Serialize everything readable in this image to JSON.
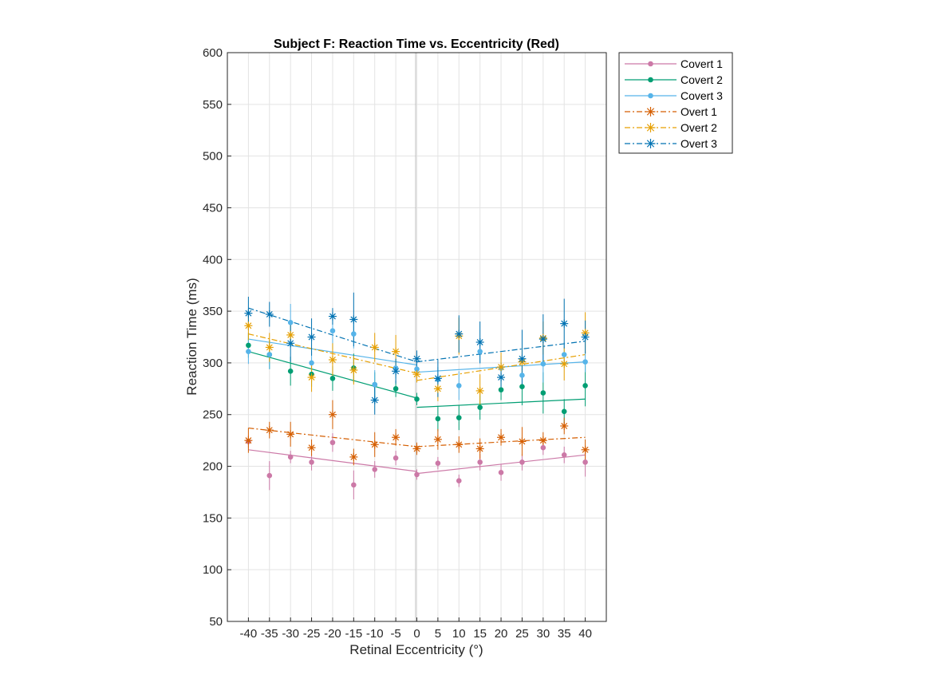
{
  "chart_data": {
    "type": "line",
    "title": "Subject F: Reaction Time vs. Eccentricity (Red)",
    "xlabel": "Retinal Eccentricity (°)",
    "ylabel": "Reaction Time (ms)",
    "xlim": [
      -45,
      45
    ],
    "ylim": [
      50,
      600
    ],
    "xticks": [
      -40,
      -35,
      -30,
      -25,
      -20,
      -15,
      -10,
      -5,
      0,
      5,
      10,
      15,
      20,
      25,
      30,
      35,
      40
    ],
    "yticks": [
      50,
      100,
      150,
      200,
      250,
      300,
      350,
      400,
      450,
      500,
      550,
      600
    ],
    "grid": true,
    "legend_position": "outside-top-right",
    "x": [
      -40,
      -35,
      -30,
      -25,
      -20,
      -15,
      -10,
      -5,
      0,
      5,
      10,
      15,
      20,
      25,
      30,
      35,
      40
    ],
    "series": [
      {
        "name": "Covert 1",
        "color": "#CC79A7",
        "linestyle": "solid",
        "marker": "dot",
        "values": [
          224,
          191,
          209,
          204,
          223,
          182,
          197,
          208,
          192,
          203,
          186,
          204,
          194,
          204,
          218,
          211,
          204
        ],
        "errors": [
          6,
          14,
          6,
          8,
          9,
          14,
          8,
          7,
          5,
          6,
          6,
          8,
          8,
          8,
          7,
          8,
          14
        ],
        "fit": [
          [
            -40,
            216
          ],
          [
            0,
            195
          ],
          [
            0,
            193
          ],
          [
            40,
            211
          ]
        ]
      },
      {
        "name": "Covert 2",
        "color": "#009E73",
        "linestyle": "solid",
        "marker": "dot",
        "values": [
          317,
          308,
          292,
          289,
          285,
          295,
          279,
          275,
          265,
          246,
          247,
          257,
          274,
          277,
          271,
          253,
          278
        ],
        "errors": [
          12,
          14,
          14,
          12,
          12,
          14,
          12,
          8,
          6,
          12,
          12,
          12,
          10,
          18,
          20,
          12,
          20
        ],
        "fit": [
          [
            -40,
            311
          ],
          [
            0,
            266
          ],
          [
            0,
            257
          ],
          [
            40,
            265
          ]
        ]
      },
      {
        "name": "Covert 3",
        "color": "#56B4E9",
        "linestyle": "solid",
        "marker": "dot",
        "values": [
          311,
          308,
          339,
          300,
          331,
          328,
          279,
          295,
          294,
          284,
          278,
          311,
          295,
          288,
          299,
          308,
          301
        ],
        "errors": [
          12,
          14,
          18,
          12,
          18,
          14,
          14,
          10,
          8,
          12,
          14,
          12,
          12,
          12,
          18,
          12,
          10
        ],
        "fit": [
          [
            -40,
            323
          ],
          [
            0,
            298
          ],
          [
            0,
            291
          ],
          [
            40,
            301
          ]
        ]
      },
      {
        "name": "Overt 1",
        "color": "#D55E00",
        "linestyle": "dashdot",
        "marker": "star",
        "values": [
          225,
          235,
          231,
          218,
          250,
          209,
          221,
          228,
          217,
          226,
          221,
          217,
          228,
          224,
          225,
          239,
          216
        ],
        "errors": [
          12,
          8,
          12,
          8,
          14,
          8,
          12,
          8,
          6,
          10,
          8,
          10,
          8,
          14,
          8,
          8,
          10
        ],
        "fit": [
          [
            -40,
            237
          ],
          [
            0,
            219
          ],
          [
            0,
            219
          ],
          [
            40,
            228
          ]
        ]
      },
      {
        "name": "Overt 2",
        "color": "#E69F00",
        "linestyle": "dashdot",
        "marker": "star",
        "values": [
          336,
          315,
          327,
          286,
          303,
          293,
          315,
          311,
          289,
          275,
          326,
          273,
          296,
          301,
          324,
          299,
          329
        ],
        "errors": [
          14,
          14,
          12,
          14,
          16,
          14,
          14,
          16,
          8,
          12,
          18,
          16,
          14,
          14,
          16,
          16,
          20
        ],
        "fit": [
          [
            -40,
            328
          ],
          [
            0,
            290
          ],
          [
            0,
            283
          ],
          [
            40,
            308
          ]
        ]
      },
      {
        "name": "Overt 3",
        "color": "#0072B2",
        "linestyle": "dashdot",
        "marker": "star",
        "values": [
          348,
          347,
          319,
          325,
          345,
          342,
          264,
          292,
          304,
          285,
          328,
          320,
          286,
          304,
          323,
          338,
          325
        ],
        "errors": [
          16,
          12,
          18,
          18,
          8,
          26,
          14,
          12,
          8,
          18,
          18,
          20,
          14,
          28,
          24,
          24,
          16
        ],
        "fit": [
          [
            -40,
            353
          ],
          [
            0,
            301
          ],
          [
            0,
            301
          ],
          [
            40,
            321
          ]
        ]
      }
    ]
  }
}
